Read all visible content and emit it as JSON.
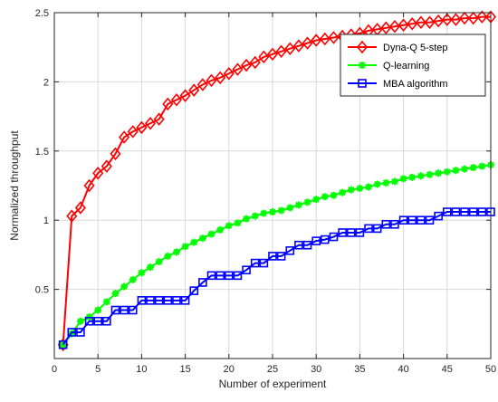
{
  "chart_data": {
    "type": "line",
    "title": "",
    "xlabel": "Number of experiment",
    "ylabel": "Normalized throughput",
    "xlim": [
      0,
      50
    ],
    "ylim": [
      0,
      2.5
    ],
    "xticks": [
      0,
      5,
      10,
      15,
      20,
      25,
      30,
      35,
      40,
      45,
      50
    ],
    "yticks": [
      0.5,
      1,
      1.5,
      2,
      2.5
    ],
    "grid": true,
    "legend": "top-right",
    "x": [
      1,
      2,
      3,
      4,
      5,
      6,
      7,
      8,
      9,
      10,
      11,
      12,
      13,
      14,
      15,
      16,
      17,
      18,
      19,
      20,
      21,
      22,
      23,
      24,
      25,
      26,
      27,
      28,
      29,
      30,
      31,
      32,
      33,
      34,
      35,
      36,
      37,
      38,
      39,
      40,
      41,
      42,
      43,
      44,
      45,
      46,
      47,
      48,
      49,
      50
    ],
    "series": [
      {
        "name": "Dyna-Q 5-step",
        "color": "#ff0000",
        "marker": "diamond",
        "values": [
          0.1,
          1.03,
          1.09,
          1.25,
          1.34,
          1.39,
          1.48,
          1.6,
          1.64,
          1.67,
          1.7,
          1.73,
          1.84,
          1.87,
          1.9,
          1.94,
          1.98,
          2.01,
          2.03,
          2.06,
          2.09,
          2.12,
          2.14,
          2.18,
          2.2,
          2.22,
          2.24,
          2.26,
          2.28,
          2.3,
          2.31,
          2.32,
          2.33,
          2.34,
          2.35,
          2.37,
          2.38,
          2.39,
          2.4,
          2.41,
          2.42,
          2.43,
          2.43,
          2.44,
          2.45,
          2.45,
          2.46,
          2.46,
          2.47,
          2.47
        ]
      },
      {
        "name": "Q-learning",
        "color": "#00ff00",
        "marker": "star",
        "values": [
          0.1,
          0.18,
          0.27,
          0.3,
          0.35,
          0.41,
          0.47,
          0.52,
          0.57,
          0.62,
          0.66,
          0.7,
          0.74,
          0.77,
          0.81,
          0.84,
          0.87,
          0.9,
          0.93,
          0.96,
          0.98,
          1.01,
          1.03,
          1.05,
          1.06,
          1.07,
          1.09,
          1.11,
          1.13,
          1.15,
          1.17,
          1.18,
          1.2,
          1.22,
          1.23,
          1.24,
          1.26,
          1.27,
          1.28,
          1.3,
          1.31,
          1.32,
          1.33,
          1.34,
          1.35,
          1.36,
          1.37,
          1.38,
          1.39,
          1.4
        ]
      },
      {
        "name": "MBA algorithm",
        "color": "#0000ff",
        "marker": "square",
        "values": [
          0.1,
          0.19,
          0.19,
          0.27,
          0.27,
          0.27,
          0.35,
          0.35,
          0.35,
          0.42,
          0.42,
          0.42,
          0.42,
          0.42,
          0.42,
          0.49,
          0.55,
          0.6,
          0.6,
          0.6,
          0.6,
          0.64,
          0.69,
          0.69,
          0.74,
          0.74,
          0.78,
          0.82,
          0.82,
          0.85,
          0.86,
          0.88,
          0.91,
          0.91,
          0.91,
          0.94,
          0.94,
          0.97,
          0.97,
          1.0,
          1.0,
          1.0,
          1.0,
          1.03,
          1.06,
          1.06,
          1.06,
          1.06,
          1.06,
          1.06
        ]
      }
    ]
  }
}
